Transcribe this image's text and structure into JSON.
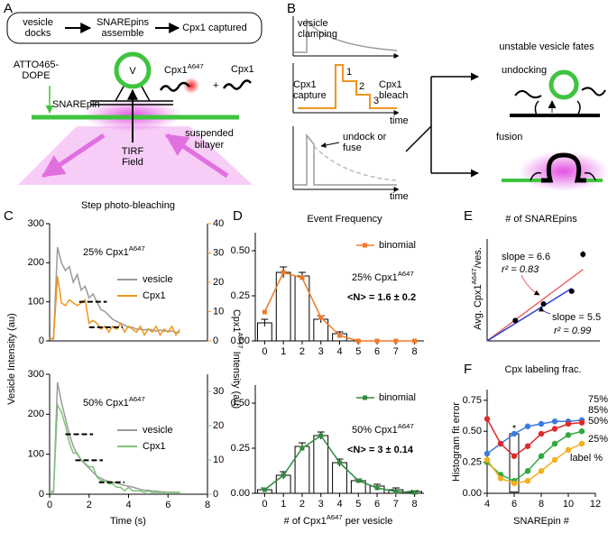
{
  "panel_a": {
    "label": "A",
    "flow": [
      [
        "vesicle",
        "docks"
      ],
      [
        "SNAREpins",
        "assemble"
      ],
      [
        "Cpx1 captured"
      ]
    ],
    "dye": [
      "ATTO465-",
      "DOPE"
    ],
    "vesicle": "V",
    "cpx_labeled": {
      "base": "Cpx1",
      "sup": "A647"
    },
    "plus": "+",
    "cpx": "Cpx1",
    "snarepin": "SNAREpin",
    "bilayer": [
      "suspended",
      "bilayer"
    ],
    "tirf": [
      "TIRF",
      "Field"
    ]
  },
  "panel_b": {
    "label": "B",
    "clamping": [
      "vesicle",
      "clamping"
    ],
    "capture": [
      "Cpx1",
      "capture"
    ],
    "steps": [
      "1",
      "2",
      "3"
    ],
    "bleach": [
      "Cpx1",
      "bleach"
    ],
    "time_labels": [
      "time",
      "time"
    ],
    "undock": [
      "undock or",
      "fuse"
    ],
    "fates_title": "unstable vesicle fates",
    "undocking": "undocking",
    "fusion": "fusion"
  },
  "panel_c": {
    "label": "C",
    "title": "Step photo-bleaching",
    "y_label": "Vesicle Intensity (au)",
    "y2_label": {
      "base": "Cpx1",
      "sup": "A647",
      "rest": " Intensity (au)"
    },
    "x_label": "Time (s)",
    "xlim": [
      0,
      8
    ],
    "xticks": [
      0,
      2,
      4,
      6,
      8
    ],
    "x": [
      0,
      0.2,
      0.4,
      0.6,
      0.8,
      1,
      1.2,
      1.4,
      1.6,
      1.8,
      2,
      2.2,
      2.4,
      2.6,
      2.8,
      3,
      3.2,
      3.4,
      3.6,
      3.8,
      4,
      4.2,
      4.4,
      4.6,
      4.8,
      5,
      5.2,
      5.4,
      5.6,
      5.8,
      6,
      6.2,
      6.4,
      6.6
    ],
    "charts": [
      {
        "type": "line",
        "ylim": [
          0,
          300
        ],
        "yticks": [
          0,
          100,
          200,
          300
        ],
        "y2lim": [
          0,
          40
        ],
        "y2ticks": [
          0,
          10,
          20,
          30,
          40
        ],
        "condition": {
          "base": "25% Cpx1",
          "sup": "A647"
        },
        "series": [
          {
            "name": "vesicle",
            "color": "#9a9a9a",
            "values": [
              5,
              5,
              240,
              200,
              180,
              190,
              150,
              170,
              130,
              140,
              110,
              120,
              100,
              80,
              75,
              65,
              55,
              50,
              45,
              40,
              35,
              35,
              30,
              30,
              28,
              30,
              28,
              25,
              28,
              25,
              25,
              25,
              22,
              22
            ]
          },
          {
            "name": "Cpx1",
            "color": "#f0951e",
            "axis": "y2",
            "values": [
              0.5,
              1,
              22,
              13,
              12,
              14,
              13,
              12,
              13,
              14,
              6,
              7,
              6,
              4,
              5,
              3,
              5,
              4,
              6,
              3,
              5,
              4,
              3,
              5,
              2,
              4,
              3,
              5,
              2,
              4,
              3,
              5,
              2,
              4
            ]
          }
        ],
        "steps": [
          [
            1.5,
            2.9,
            100
          ],
          [
            2.0,
            3.7,
            35
          ]
        ]
      },
      {
        "type": "line",
        "ylim": [
          0,
          300
        ],
        "yticks": [
          0,
          100,
          200,
          300
        ],
        "y2lim": [
          0,
          35
        ],
        "y2ticks": [
          0,
          10,
          20,
          30
        ],
        "condition": {
          "base": "50% Cpx1",
          "sup": "A647"
        },
        "series": [
          {
            "name": "vesicle",
            "color": "#9a9a9a",
            "values": [
              5,
              5,
              280,
              230,
              190,
              150,
              120,
              100,
              85,
              75,
              65,
              55,
              45,
              40,
              35,
              32,
              30,
              28,
              25,
              22,
              20,
              18,
              15,
              12,
              10,
              10,
              8,
              8,
              6,
              6,
              5,
              5,
              5,
              5
            ]
          },
          {
            "name": "Cpx1",
            "color": "#7cc576",
            "axis": "y2",
            "values": [
              0.5,
              1,
              26,
              24,
              20,
              15,
              12,
              12,
              10,
              9,
              8,
              8,
              5,
              4,
              4,
              3,
              3,
              2,
              2,
              1,
              2,
              1,
              1,
              1,
              0.5,
              1,
              0.5,
              0.5,
              0.5,
              0.5,
              0.5,
              0.5,
              0.5,
              0.5
            ]
          }
        ],
        "steps": [
          [
            0.8,
            2.2,
            150
          ],
          [
            1.3,
            2.7,
            85
          ],
          [
            2.5,
            3.8,
            30
          ]
        ]
      }
    ]
  },
  "panel_d": {
    "label": "D",
    "title": "Event Frequency",
    "x_label": {
      "base": "# of Cpx1",
      "sup": "A647",
      "rest": " per vesicle"
    },
    "categories": [
      "0",
      "1",
      "2",
      "3",
      "4",
      "5",
      "6",
      "7",
      "8"
    ],
    "charts": [
      {
        "type": "bar",
        "ylim": [
          0,
          0.6
        ],
        "yticks": [
          {
            "value": 0,
            "label": "0.00"
          },
          {
            "value": 0.25,
            "label": "0.25"
          },
          {
            "value": 0.5,
            "label": "0.50"
          }
        ],
        "values": [
          0.1,
          0.38,
          0.36,
          0.12,
          0.04,
          0,
          0,
          0,
          0
        ],
        "errors": [
          0.02,
          0.03,
          0.02,
          0.02,
          0.01,
          0,
          0,
          0,
          0
        ],
        "condition": {
          "base": "25% Cpx1",
          "sup": "A647"
        },
        "mean_label": "<N> = 1.6 ± 0.2",
        "condition_color": "#e02020",
        "fit": {
          "name": "binomial",
          "color": "#f07a2a",
          "values": [
            0.16,
            0.38,
            0.35,
            0.13,
            0.03,
            0,
            0,
            0,
            0
          ]
        }
      },
      {
        "type": "bar",
        "ylim": [
          0,
          0.6
        ],
        "yticks": [
          {
            "value": 0,
            "label": "0.00"
          },
          {
            "value": 0.25,
            "label": "0.25"
          },
          {
            "value": 0.5,
            "label": "0.50"
          }
        ],
        "values": [
          0.02,
          0.1,
          0.26,
          0.32,
          0.17,
          0.07,
          0.04,
          0.02,
          0.01
        ],
        "errors": [
          0.01,
          0.02,
          0.02,
          0.02,
          0.02,
          0.01,
          0.01,
          0.01,
          0.005
        ],
        "condition": {
          "base": "50% Cpx1",
          "sup": "A647"
        },
        "mean_label": "<N> = 3 ± 0.14",
        "condition_color": "#e02020",
        "fit": {
          "name": "binomial",
          "color": "#2e8b3e",
          "values": [
            0.02,
            0.1,
            0.25,
            0.32,
            0.17,
            0.07,
            0.03,
            0.01,
            0.005
          ]
        }
      }
    ]
  },
  "panel_e": {
    "label": "E",
    "title": "# of SNAREpins",
    "type": "scatter",
    "x": [
      0.25,
      0.5,
      0.75,
      0.85
    ],
    "values": [
      1.6,
      2.9,
      3.9,
      6.8
    ],
    "errors": [
      0.1,
      0.1,
      0.1,
      0.25
    ],
    "xlim": [
      0,
      1
    ],
    "ylim": [
      0,
      8
    ],
    "y_label": {
      "base": "Avg. Cpx1",
      "sup": "A647",
      "rest": "/ves."
    },
    "x_label": "Cpx labeling frac.",
    "fits": [
      {
        "slope": 6.6,
        "label": "slope = 6.6",
        "r2": "r² = 0.83",
        "color": "#e86b6b"
      },
      {
        "slope": 5.5,
        "label": "slope = 5.5",
        "r2": "r² = 0.99",
        "color": "#2b3fd0"
      }
    ]
  },
  "panel_f": {
    "label": "F",
    "type": "line",
    "x_label": "SNAREpin #",
    "y_label": "Histogram fit error",
    "x": [
      4,
      5,
      6,
      7,
      8,
      9,
      10,
      11
    ],
    "xlim": [
      4,
      12
    ],
    "xticks": [
      4,
      6,
      8,
      10,
      12
    ],
    "ylim": [
      0,
      0.8
    ],
    "yticks": [
      {
        "value": 0,
        "label": "0.00"
      },
      {
        "value": 0.25,
        "label": "0.25"
      },
      {
        "value": 0.5,
        "label": "0.50"
      },
      {
        "value": 0.75,
        "label": "0.75"
      }
    ],
    "series": [
      {
        "name": "75%",
        "color": "#3b7be0",
        "values": [
          0.32,
          0.4,
          0.48,
          0.54,
          0.56,
          0.58,
          0.58,
          0.59
        ]
      },
      {
        "name": "85%",
        "color": "#e02a2a",
        "values": [
          0.6,
          0.4,
          0.3,
          0.38,
          0.48,
          0.52,
          0.56,
          0.57
        ]
      },
      {
        "name": "50%",
        "color": "#2eaa3a",
        "values": [
          0.25,
          0.15,
          0.1,
          0.18,
          0.3,
          0.4,
          0.47,
          0.5
        ]
      },
      {
        "name": "25%",
        "color": "#f5b01e",
        "values": [
          0.27,
          0.12,
          0.08,
          0.1,
          0.18,
          0.27,
          0.35,
          0.4
        ]
      }
    ],
    "legend_title": "label %",
    "annotation": "*"
  }
}
